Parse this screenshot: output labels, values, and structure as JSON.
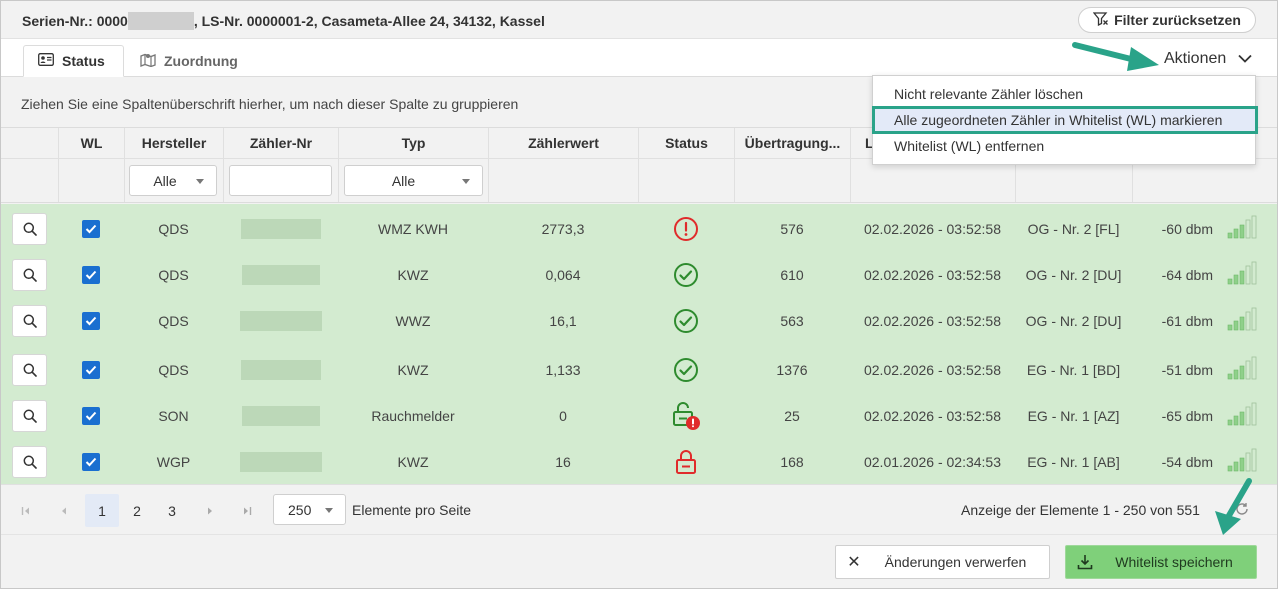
{
  "header": {
    "title_prefix": "Serien-Nr.: 0000",
    "title_suffix": ", LS-Nr. 0000001-2, Casameta-Allee 24, 34132, Kassel",
    "filter_reset_label": "Filter zurücksetzen"
  },
  "tabs": [
    {
      "label": "Status",
      "icon": "id-card-icon",
      "active": true
    },
    {
      "label": "Zuordnung",
      "icon": "map-icon",
      "active": false
    }
  ],
  "actions": {
    "label": "Aktionen",
    "menu": [
      "Nicht relevante Zähler löschen",
      "Alle zugeordneten Zähler in Whitelist (WL) markieren",
      "Whitelist (WL) entfernen"
    ]
  },
  "group_hint": "Ziehen Sie eine Spaltenüberschrift hierher, um nach dieser Spalte zu gruppieren",
  "columns": [
    "",
    "WL",
    "Hersteller",
    "Zähler-Nr",
    "Typ",
    "Zählerwert",
    "Status",
    "Übertragung...",
    "L",
    "",
    ""
  ],
  "filters": {
    "hersteller": "Alle",
    "typ": "Alle"
  },
  "rows": [
    {
      "wl": true,
      "hersteller": "QDS",
      "typ": "WMZ KWH",
      "wert": "2773,3",
      "status": "error",
      "uebertragung": "576",
      "datum": "02.02.2026 - 03:52:58",
      "lage": "OG - Nr. 2 [FL]",
      "signal": "-60 dbm"
    },
    {
      "wl": true,
      "hersteller": "QDS",
      "typ": "KWZ",
      "wert": "0,064",
      "status": "ok",
      "uebertragung": "610",
      "datum": "02.02.2026 - 03:52:58",
      "lage": "OG - Nr. 2 [DU]",
      "signal": "-64 dbm"
    },
    {
      "wl": true,
      "hersteller": "QDS",
      "typ": "WWZ",
      "wert": "16,1",
      "status": "ok",
      "uebertragung": "563",
      "datum": "02.02.2026 - 03:52:58",
      "lage": "OG - Nr. 2 [DU]",
      "signal": "-61 dbm"
    },
    {
      "wl": true,
      "hersteller": "QDS",
      "typ": "KWZ",
      "wert": "1,133",
      "status": "ok",
      "uebertragung": "1376",
      "datum": "02.02.2026 - 03:52:58",
      "lage": "EG - Nr. 1 [BD]",
      "signal": "-51 dbm"
    },
    {
      "wl": true,
      "hersteller": "SON",
      "typ": "Rauchmelder",
      "wert": "0",
      "status": "unlocked-warning",
      "uebertragung": "25",
      "datum": "02.02.2026 - 03:52:58",
      "lage": "EG - Nr. 1 [AZ]",
      "signal": "-65 dbm"
    },
    {
      "wl": true,
      "hersteller": "WGP",
      "typ": "KWZ",
      "wert": "16",
      "status": "locked",
      "uebertragung": "168",
      "datum": "02.01.2026 - 02:34:53",
      "lage": "EG - Nr. 1 [AB]",
      "signal": "-54 dbm"
    }
  ],
  "pager": {
    "pages": [
      "1",
      "2",
      "3"
    ],
    "current": "1",
    "page_size": "250",
    "page_size_label": "Elemente pro Seite",
    "info": "Anzeige der Elemente 1 - 250 von 551"
  },
  "footer": {
    "discard_label": "Änderungen verwerfen",
    "save_label": "Whitelist speichern"
  },
  "colors": {
    "row_green": "#d3ebd0",
    "accent_teal": "#2aa389",
    "error_red": "#e02b2b",
    "ok_green": "#2e8b2e",
    "save_green": "#7fd07a"
  }
}
